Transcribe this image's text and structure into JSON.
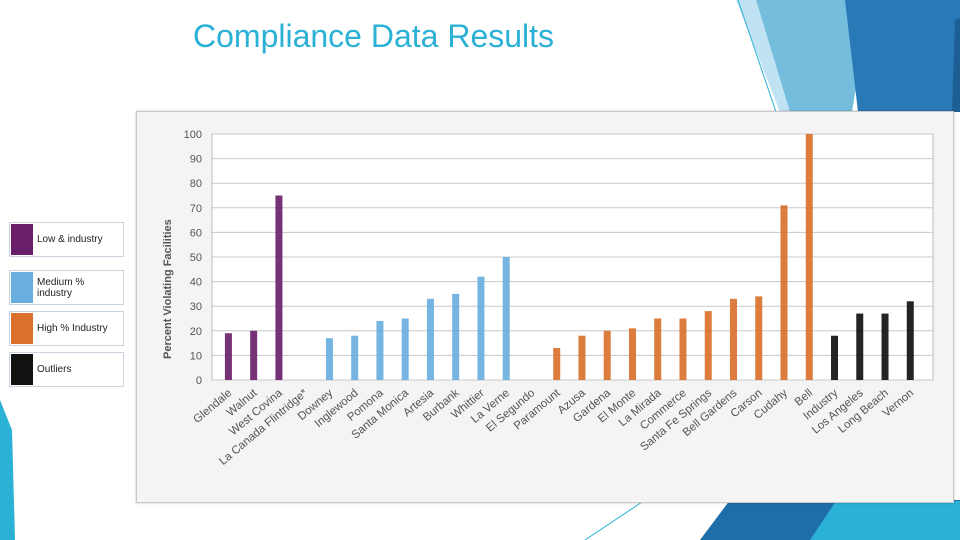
{
  "slide": {
    "title": "Compliance Data Results"
  },
  "legend": [
    {
      "label": "Low & industry",
      "color": "#6b1f6b"
    },
    {
      "label": "Medium % industry",
      "color": "#6aaee0"
    },
    {
      "label": "High % Industry",
      "color": "#d9712d"
    },
    {
      "label": "Outliers",
      "color": "#111111"
    }
  ],
  "chart_data": {
    "type": "bar",
    "ylabel": "Percent Violating Facilities",
    "ylim": [
      0,
      100
    ],
    "yticks": [
      0,
      10,
      20,
      30,
      40,
      50,
      60,
      70,
      80,
      90,
      100
    ],
    "grid": true,
    "legend_position": "left, outside plot",
    "categories": [
      "Glendale",
      "Walnut",
      "West Covina",
      "La Canada Flintridge*",
      "Downey",
      "Inglewood",
      "Pomona",
      "Santa Monica",
      "Artesia",
      "Burbank",
      "Whittier",
      "La Verne",
      "El Segundo",
      "Paramount",
      "Azusa",
      "Gardena",
      "El Monte",
      "La Mirada",
      "Commerce",
      "Santa Fe Springs",
      "Bell Gardens",
      "Carson",
      "Cudahy",
      "Bell",
      "Industry",
      "Los Angeles",
      "Long Beach",
      "Vernon"
    ],
    "series": [
      {
        "name": "Low & industry",
        "color": "#6b1f6b",
        "values": [
          19,
          20,
          75,
          0,
          null,
          null,
          null,
          null,
          null,
          null,
          null,
          null,
          null,
          null,
          null,
          null,
          null,
          null,
          null,
          null,
          null,
          null,
          null,
          null,
          null,
          null,
          null,
          null
        ]
      },
      {
        "name": "Medium % industry",
        "color": "#6aaee0",
        "values": [
          null,
          null,
          null,
          null,
          17,
          18,
          24,
          25,
          33,
          35,
          42,
          50,
          0,
          null,
          null,
          null,
          null,
          null,
          null,
          null,
          null,
          null,
          null,
          null,
          null,
          null,
          null,
          null
        ]
      },
      {
        "name": "High % Industry",
        "color": "#d9712d",
        "values": [
          null,
          null,
          null,
          null,
          null,
          null,
          null,
          null,
          null,
          null,
          null,
          null,
          null,
          13,
          18,
          20,
          21,
          25,
          25,
          28,
          33,
          34,
          71,
          100,
          null,
          null,
          null,
          null
        ]
      },
      {
        "name": "Outliers",
        "color": "#111111",
        "values": [
          null,
          null,
          null,
          null,
          null,
          null,
          null,
          null,
          null,
          null,
          null,
          null,
          null,
          null,
          null,
          null,
          null,
          null,
          null,
          null,
          null,
          null,
          null,
          null,
          18,
          27,
          27,
          32
        ]
      }
    ]
  }
}
